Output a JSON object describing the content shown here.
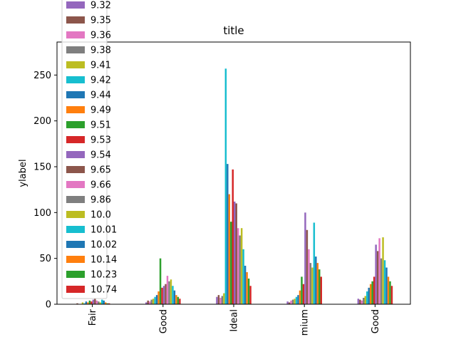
{
  "chart_data": {
    "type": "bar",
    "title": "title",
    "xlabel": "",
    "ylabel": "ylabel",
    "ylim": [
      0,
      286
    ],
    "yticks": [
      0,
      50,
      100,
      150,
      200,
      250
    ],
    "categories": [
      "Fair",
      "Good",
      "Ideal",
      "Premium",
      "Very Good"
    ],
    "category_labels_visible": [
      "Fair",
      "Good",
      "Ideal",
      "mium",
      "Good"
    ],
    "legend_position": "upper-left",
    "grid": false,
    "series": [
      {
        "name": "9.32",
        "color": "#9467bd",
        "values": [
          0,
          2,
          8,
          3,
          6
        ]
      },
      {
        "name": "9.35",
        "color": "#8c564b",
        "values": [
          1,
          4,
          10,
          2,
          5
        ]
      },
      {
        "name": "9.36",
        "color": "#e377c2",
        "values": [
          0,
          3,
          7,
          4,
          4
        ]
      },
      {
        "name": "9.38",
        "color": "#7f7f7f",
        "values": [
          0,
          5,
          9,
          5,
          7
        ]
      },
      {
        "name": "9.41",
        "color": "#bcbd22",
        "values": [
          2,
          6,
          12,
          6,
          9
        ]
      },
      {
        "name": "9.42",
        "color": "#17becf",
        "values": [
          1,
          8,
          257,
          8,
          14
        ]
      },
      {
        "name": "9.44",
        "color": "#1f77b4",
        "values": [
          3,
          10,
          153,
          10,
          18
        ]
      },
      {
        "name": "9.49",
        "color": "#ff7f0e",
        "values": [
          2,
          14,
          120,
          15,
          22
        ]
      },
      {
        "name": "9.51",
        "color": "#2ca02c",
        "values": [
          4,
          50,
          90,
          30,
          25
        ]
      },
      {
        "name": "9.53",
        "color": "#d62728",
        "values": [
          3,
          18,
          147,
          22,
          30
        ]
      },
      {
        "name": "9.54",
        "color": "#9467bd",
        "values": [
          5,
          20,
          112,
          100,
          65
        ]
      },
      {
        "name": "9.65",
        "color": "#8c564b",
        "values": [
          6,
          22,
          110,
          81,
          58
        ]
      },
      {
        "name": "9.66",
        "color": "#e377c2",
        "values": [
          4,
          31,
          83,
          60,
          72
        ]
      },
      {
        "name": "9.86",
        "color": "#7f7f7f",
        "values": [
          3,
          25,
          75,
          45,
          50
        ]
      },
      {
        "name": "10.0",
        "color": "#bcbd22",
        "values": [
          2,
          27,
          83,
          40,
          73
        ]
      },
      {
        "name": "10.01",
        "color": "#17becf",
        "values": [
          5,
          20,
          60,
          89,
          48
        ]
      },
      {
        "name": "10.02",
        "color": "#1f77b4",
        "values": [
          4,
          15,
          42,
          52,
          40
        ]
      },
      {
        "name": "10.14",
        "color": "#ff7f0e",
        "values": [
          2,
          10,
          35,
          45,
          30
        ]
      },
      {
        "name": "10.23",
        "color": "#2ca02c",
        "values": [
          1,
          8,
          28,
          38,
          25
        ]
      },
      {
        "name": "10.74",
        "color": "#d62728",
        "values": [
          1,
          6,
          20,
          30,
          20
        ]
      }
    ]
  }
}
